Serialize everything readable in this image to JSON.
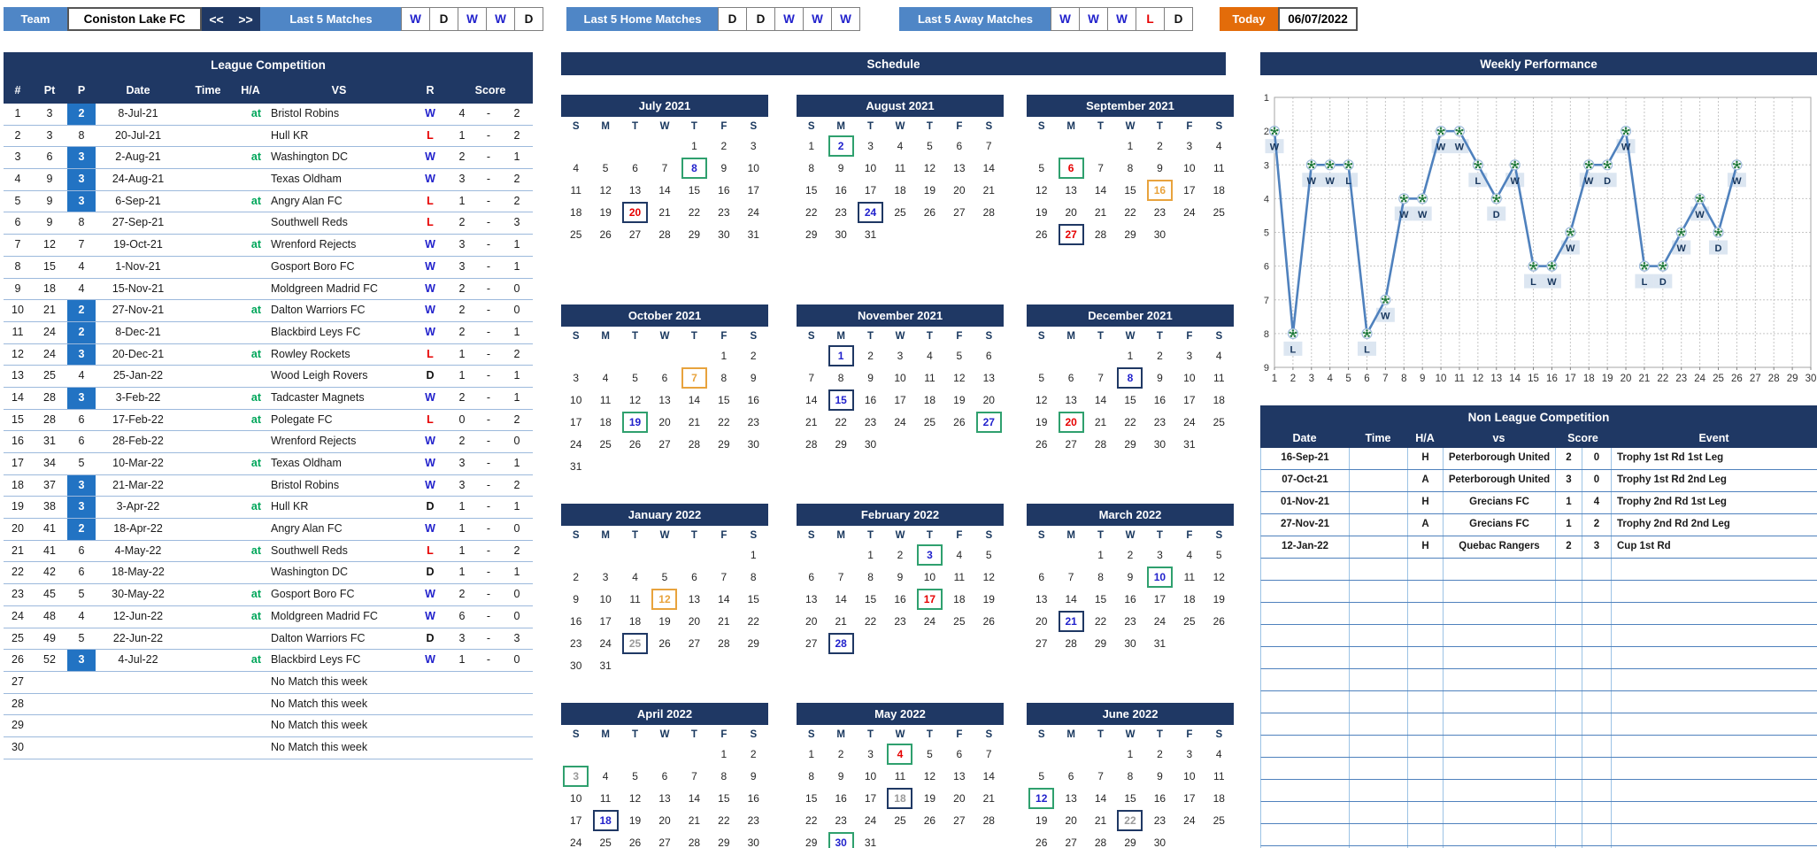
{
  "top_bar": {
    "team_label": "Team",
    "team_name": "Coniston Lake FC",
    "prev_label": "<<",
    "next_label": ">>",
    "last5": {
      "label": "Last 5 Matches",
      "results": [
        "W",
        "D",
        "W",
        "W",
        "D"
      ]
    },
    "last5_home": {
      "label": "Last 5 Home Matches",
      "results": [
        "D",
        "D",
        "W",
        "W",
        "W"
      ]
    },
    "last5_away": {
      "label": "Last 5 Away Matches",
      "results": [
        "W",
        "W",
        "W",
        "L",
        "D"
      ]
    },
    "today_label": "Today",
    "today_date": "06/07/2022"
  },
  "league": {
    "title": "League Competition",
    "headers": [
      "#",
      "Pt",
      "P",
      "Date",
      "Time",
      "H/A",
      "VS",
      "R",
      "Score"
    ],
    "no_match_text": "No Match this week",
    "no_match_rows": [
      27,
      28,
      29,
      30
    ],
    "rows": [
      {
        "n": 1,
        "pt": 3,
        "p": 2,
        "hl": true,
        "date": "8-Jul-21",
        "time": "",
        "at": true,
        "vs": "Bristol Robins",
        "r": "W",
        "s1": 4,
        "s2": 2
      },
      {
        "n": 2,
        "pt": 3,
        "p": 8,
        "hl": false,
        "date": "20-Jul-21",
        "time": "",
        "at": false,
        "vs": "Hull KR",
        "r": "L",
        "s1": 1,
        "s2": 2
      },
      {
        "n": 3,
        "pt": 6,
        "p": 3,
        "hl": true,
        "date": "2-Aug-21",
        "time": "",
        "at": true,
        "vs": "Washington DC",
        "r": "W",
        "s1": 2,
        "s2": 1
      },
      {
        "n": 4,
        "pt": 9,
        "p": 3,
        "hl": true,
        "date": "24-Aug-21",
        "time": "",
        "at": false,
        "vs": "Texas Oldham",
        "r": "W",
        "s1": 3,
        "s2": 2
      },
      {
        "n": 5,
        "pt": 9,
        "p": 3,
        "hl": true,
        "date": "6-Sep-21",
        "time": "",
        "at": true,
        "vs": "Angry Alan FC",
        "r": "L",
        "s1": 1,
        "s2": 2
      },
      {
        "n": 6,
        "pt": 9,
        "p": 8,
        "hl": false,
        "date": "27-Sep-21",
        "time": "",
        "at": false,
        "vs": "Southwell Reds",
        "r": "L",
        "s1": 2,
        "s2": 3
      },
      {
        "n": 7,
        "pt": 12,
        "p": 7,
        "hl": false,
        "date": "19-Oct-21",
        "time": "",
        "at": true,
        "vs": "Wrenford Rejects",
        "r": "W",
        "s1": 3,
        "s2": 1
      },
      {
        "n": 8,
        "pt": 15,
        "p": 4,
        "hl": false,
        "date": "1-Nov-21",
        "time": "",
        "at": false,
        "vs": "Gosport Boro FC",
        "r": "W",
        "s1": 3,
        "s2": 1
      },
      {
        "n": 9,
        "pt": 18,
        "p": 4,
        "hl": false,
        "date": "15-Nov-21",
        "time": "",
        "at": false,
        "vs": "Moldgreen Madrid FC",
        "r": "W",
        "s1": 2,
        "s2": 0
      },
      {
        "n": 10,
        "pt": 21,
        "p": 2,
        "hl": true,
        "date": "27-Nov-21",
        "time": "",
        "at": true,
        "vs": "Dalton Warriors FC",
        "r": "W",
        "s1": 2,
        "s2": 0
      },
      {
        "n": 11,
        "pt": 24,
        "p": 2,
        "hl": true,
        "date": "8-Dec-21",
        "time": "",
        "at": false,
        "vs": "Blackbird Leys FC",
        "r": "W",
        "s1": 2,
        "s2": 1
      },
      {
        "n": 12,
        "pt": 24,
        "p": 3,
        "hl": true,
        "date": "20-Dec-21",
        "time": "",
        "at": true,
        "vs": "Rowley Rockets",
        "r": "L",
        "s1": 1,
        "s2": 2
      },
      {
        "n": 13,
        "pt": 25,
        "p": 4,
        "hl": false,
        "date": "25-Jan-22",
        "time": "",
        "at": false,
        "vs": "Wood Leigh Rovers",
        "r": "D",
        "s1": 1,
        "s2": 1
      },
      {
        "n": 14,
        "pt": 28,
        "p": 3,
        "hl": true,
        "date": "3-Feb-22",
        "time": "",
        "at": true,
        "vs": "Tadcaster Magnets",
        "r": "W",
        "s1": 2,
        "s2": 1
      },
      {
        "n": 15,
        "pt": 28,
        "p": 6,
        "hl": false,
        "date": "17-Feb-22",
        "time": "",
        "at": true,
        "vs": "Polegate FC",
        "r": "L",
        "s1": 0,
        "s2": 2
      },
      {
        "n": 16,
        "pt": 31,
        "p": 6,
        "hl": false,
        "date": "28-Feb-22",
        "time": "",
        "at": false,
        "vs": "Wrenford Rejects",
        "r": "W",
        "s1": 2,
        "s2": 0
      },
      {
        "n": 17,
        "pt": 34,
        "p": 5,
        "hl": false,
        "date": "10-Mar-22",
        "time": "",
        "at": true,
        "vs": "Texas Oldham",
        "r": "W",
        "s1": 3,
        "s2": 1
      },
      {
        "n": 18,
        "pt": 37,
        "p": 3,
        "hl": true,
        "date": "21-Mar-22",
        "time": "",
        "at": false,
        "vs": "Bristol Robins",
        "r": "W",
        "s1": 3,
        "s2": 2
      },
      {
        "n": 19,
        "pt": 38,
        "p": 3,
        "hl": true,
        "date": "3-Apr-22",
        "time": "",
        "at": true,
        "vs": "Hull KR",
        "r": "D",
        "s1": 1,
        "s2": 1
      },
      {
        "n": 20,
        "pt": 41,
        "p": 2,
        "hl": true,
        "date": "18-Apr-22",
        "time": "",
        "at": false,
        "vs": "Angry Alan FC",
        "r": "W",
        "s1": 1,
        "s2": 0
      },
      {
        "n": 21,
        "pt": 41,
        "p": 6,
        "hl": false,
        "date": "4-May-22",
        "time": "",
        "at": true,
        "vs": "Southwell Reds",
        "r": "L",
        "s1": 1,
        "s2": 2
      },
      {
        "n": 22,
        "pt": 42,
        "p": 6,
        "hl": false,
        "date": "18-May-22",
        "time": "",
        "at": false,
        "vs": "Washington DC",
        "r": "D",
        "s1": 1,
        "s2": 1
      },
      {
        "n": 23,
        "pt": 45,
        "p": 5,
        "hl": false,
        "date": "30-May-22",
        "time": "",
        "at": true,
        "vs": "Gosport Boro FC",
        "r": "W",
        "s1": 2,
        "s2": 0
      },
      {
        "n": 24,
        "pt": 48,
        "p": 4,
        "hl": false,
        "date": "12-Jun-22",
        "time": "",
        "at": true,
        "vs": "Moldgreen Madrid FC",
        "r": "W",
        "s1": 6,
        "s2": 0
      },
      {
        "n": 25,
        "pt": 49,
        "p": 5,
        "hl": false,
        "date": "22-Jun-22",
        "time": "",
        "at": false,
        "vs": "Dalton Warriors FC",
        "r": "D",
        "s1": 3,
        "s2": 3
      },
      {
        "n": 26,
        "pt": 52,
        "p": 3,
        "hl": true,
        "date": "4-Jul-22",
        "time": "",
        "at": true,
        "vs": "Blackbird Leys FC",
        "r": "W",
        "s1": 1,
        "s2": 0
      }
    ]
  },
  "schedule": {
    "title": "Schedule",
    "day_headers": [
      "S",
      "M",
      "T",
      "W",
      "T",
      "F",
      "S"
    ],
    "months": [
      {
        "name": "July 2021",
        "start_dow": 4,
        "days": 31,
        "events": [
          {
            "day": 8,
            "type": "away",
            "result": "W"
          },
          {
            "day": 20,
            "type": "home",
            "result": "L"
          }
        ]
      },
      {
        "name": "August 2021",
        "start_dow": 0,
        "days": 31,
        "events": [
          {
            "day": 2,
            "type": "away",
            "result": "W"
          },
          {
            "day": 24,
            "type": "home",
            "result": "W"
          }
        ]
      },
      {
        "name": "September 2021",
        "start_dow": 3,
        "days": 30,
        "events": [
          {
            "day": 6,
            "type": "away",
            "result": "L"
          },
          {
            "day": 16,
            "type": "nonleague",
            "result": null
          },
          {
            "day": 27,
            "type": "home",
            "result": "L"
          }
        ]
      },
      {
        "name": "October 2021",
        "start_dow": 5,
        "days": 31,
        "events": [
          {
            "day": 7,
            "type": "nonleague",
            "result": null
          },
          {
            "day": 19,
            "type": "away",
            "result": "W"
          }
        ]
      },
      {
        "name": "November 2021",
        "start_dow": 1,
        "days": 30,
        "events": [
          {
            "day": 1,
            "type": "home",
            "result": "W"
          },
          {
            "day": 15,
            "type": "home",
            "result": "W"
          },
          {
            "day": 27,
            "type": "away",
            "result": "W"
          }
        ]
      },
      {
        "name": "December 2021",
        "start_dow": 3,
        "days": 31,
        "events": [
          {
            "day": 8,
            "type": "home",
            "result": "W"
          },
          {
            "day": 20,
            "type": "away",
            "result": "L"
          }
        ]
      },
      {
        "name": "January 2022",
        "start_dow": 6,
        "days": 31,
        "events": [
          {
            "day": 12,
            "type": "nonleague",
            "result": null
          },
          {
            "day": 25,
            "type": "home",
            "result": "D"
          }
        ]
      },
      {
        "name": "February 2022",
        "start_dow": 2,
        "days": 28,
        "events": [
          {
            "day": 3,
            "type": "away",
            "result": "W"
          },
          {
            "day": 17,
            "type": "away",
            "result": "L"
          },
          {
            "day": 28,
            "type": "home",
            "result": "W"
          }
        ]
      },
      {
        "name": "March 2022",
        "start_dow": 2,
        "days": 31,
        "events": [
          {
            "day": 10,
            "type": "away",
            "result": "W"
          },
          {
            "day": 21,
            "type": "home",
            "result": "W"
          }
        ]
      },
      {
        "name": "April 2022",
        "start_dow": 5,
        "days": 30,
        "events": [
          {
            "day": 3,
            "type": "away",
            "result": "D"
          },
          {
            "day": 18,
            "type": "home",
            "result": "W"
          }
        ]
      },
      {
        "name": "May 2022",
        "start_dow": 0,
        "days": 31,
        "events": [
          {
            "day": 4,
            "type": "away",
            "result": "L"
          },
          {
            "day": 18,
            "type": "home",
            "result": "D"
          },
          {
            "day": 30,
            "type": "away",
            "result": "W"
          }
        ]
      },
      {
        "name": "June 2022",
        "start_dow": 3,
        "days": 30,
        "events": [
          {
            "day": 12,
            "type": "away",
            "result": "W"
          },
          {
            "day": 22,
            "type": "home",
            "result": "D"
          }
        ]
      }
    ]
  },
  "performance": {
    "title": "Weekly Performance"
  },
  "chart_data": {
    "type": "line",
    "title": "Weekly Performance",
    "x": [
      1,
      2,
      3,
      4,
      5,
      6,
      7,
      8,
      9,
      10,
      11,
      12,
      13,
      14,
      15,
      16,
      17,
      18,
      19,
      20,
      21,
      22,
      23,
      24,
      25,
      26
    ],
    "y_position": [
      2,
      8,
      3,
      3,
      3,
      8,
      7,
      4,
      4,
      2,
      2,
      3,
      4,
      3,
      6,
      6,
      5,
      3,
      3,
      2,
      6,
      6,
      5,
      4,
      5,
      3
    ],
    "point_labels": [
      "W",
      "L",
      "W",
      "W",
      "L",
      "L",
      "W",
      "W",
      "W",
      "W",
      "W",
      "L",
      "D",
      "W",
      "L",
      "W",
      "W",
      "W",
      "D",
      "W",
      "L",
      "D",
      "W",
      "W",
      "D",
      "W"
    ],
    "x_ticks": [
      1,
      2,
      3,
      4,
      5,
      6,
      7,
      8,
      9,
      10,
      11,
      12,
      13,
      14,
      15,
      16,
      17,
      18,
      19,
      20,
      21,
      22,
      23,
      24,
      25,
      26,
      27,
      28,
      29,
      30
    ],
    "y_ticks": [
      1,
      2,
      3,
      4,
      5,
      6,
      7,
      8,
      9
    ],
    "xlim": [
      1,
      30
    ],
    "ylim": [
      1,
      9
    ],
    "y_axis_reversed": true,
    "grid": true,
    "xlabel": "",
    "ylabel": ""
  },
  "non_league": {
    "title": "Non League Competition",
    "headers": [
      "Date",
      "Time",
      "H/A",
      "vs",
      "Score",
      "Event"
    ],
    "empty_row_count": 14,
    "rows": [
      {
        "date": "16-Sep-21",
        "time": "",
        "ha": "H",
        "vs": "Peterborough United",
        "s1": 2,
        "s2": 0,
        "event": "Trophy 1st Rd 1st Leg"
      },
      {
        "date": "07-Oct-21",
        "time": "",
        "ha": "A",
        "vs": "Peterborough United",
        "s1": 3,
        "s2": 0,
        "event": "Trophy 1st Rd 2nd Leg"
      },
      {
        "date": "01-Nov-21",
        "time": "",
        "ha": "H",
        "vs": "Grecians FC",
        "s1": 1,
        "s2": 4,
        "event": "Trophy 2nd Rd 1st Leg"
      },
      {
        "date": "27-Nov-21",
        "time": "",
        "ha": "A",
        "vs": "Grecians FC",
        "s1": 1,
        "s2": 2,
        "event": "Trophy 2nd Rd 2nd Leg"
      },
      {
        "date": "12-Jan-22",
        "time": "",
        "ha": "H",
        "vs": "Quebac Rangers",
        "s1": 2,
        "s2": 3,
        "event": "Cup 1st Rd"
      }
    ]
  },
  "colors": {
    "navy": "#1F3864",
    "blue_button": "#4F86C6",
    "orange_today": "#E36C0A",
    "win_text": "#2222CC",
    "loss_text": "#E60000",
    "draw_text_calendar": "#999999",
    "at_green": "#00A65A",
    "away_border_green": "#2FA06E",
    "nonleague_orange": "#E8A33D",
    "position_highlight": "#2273C3",
    "chart_line": "#4F81BD",
    "chart_label_bg": "#DCE6F1"
  }
}
